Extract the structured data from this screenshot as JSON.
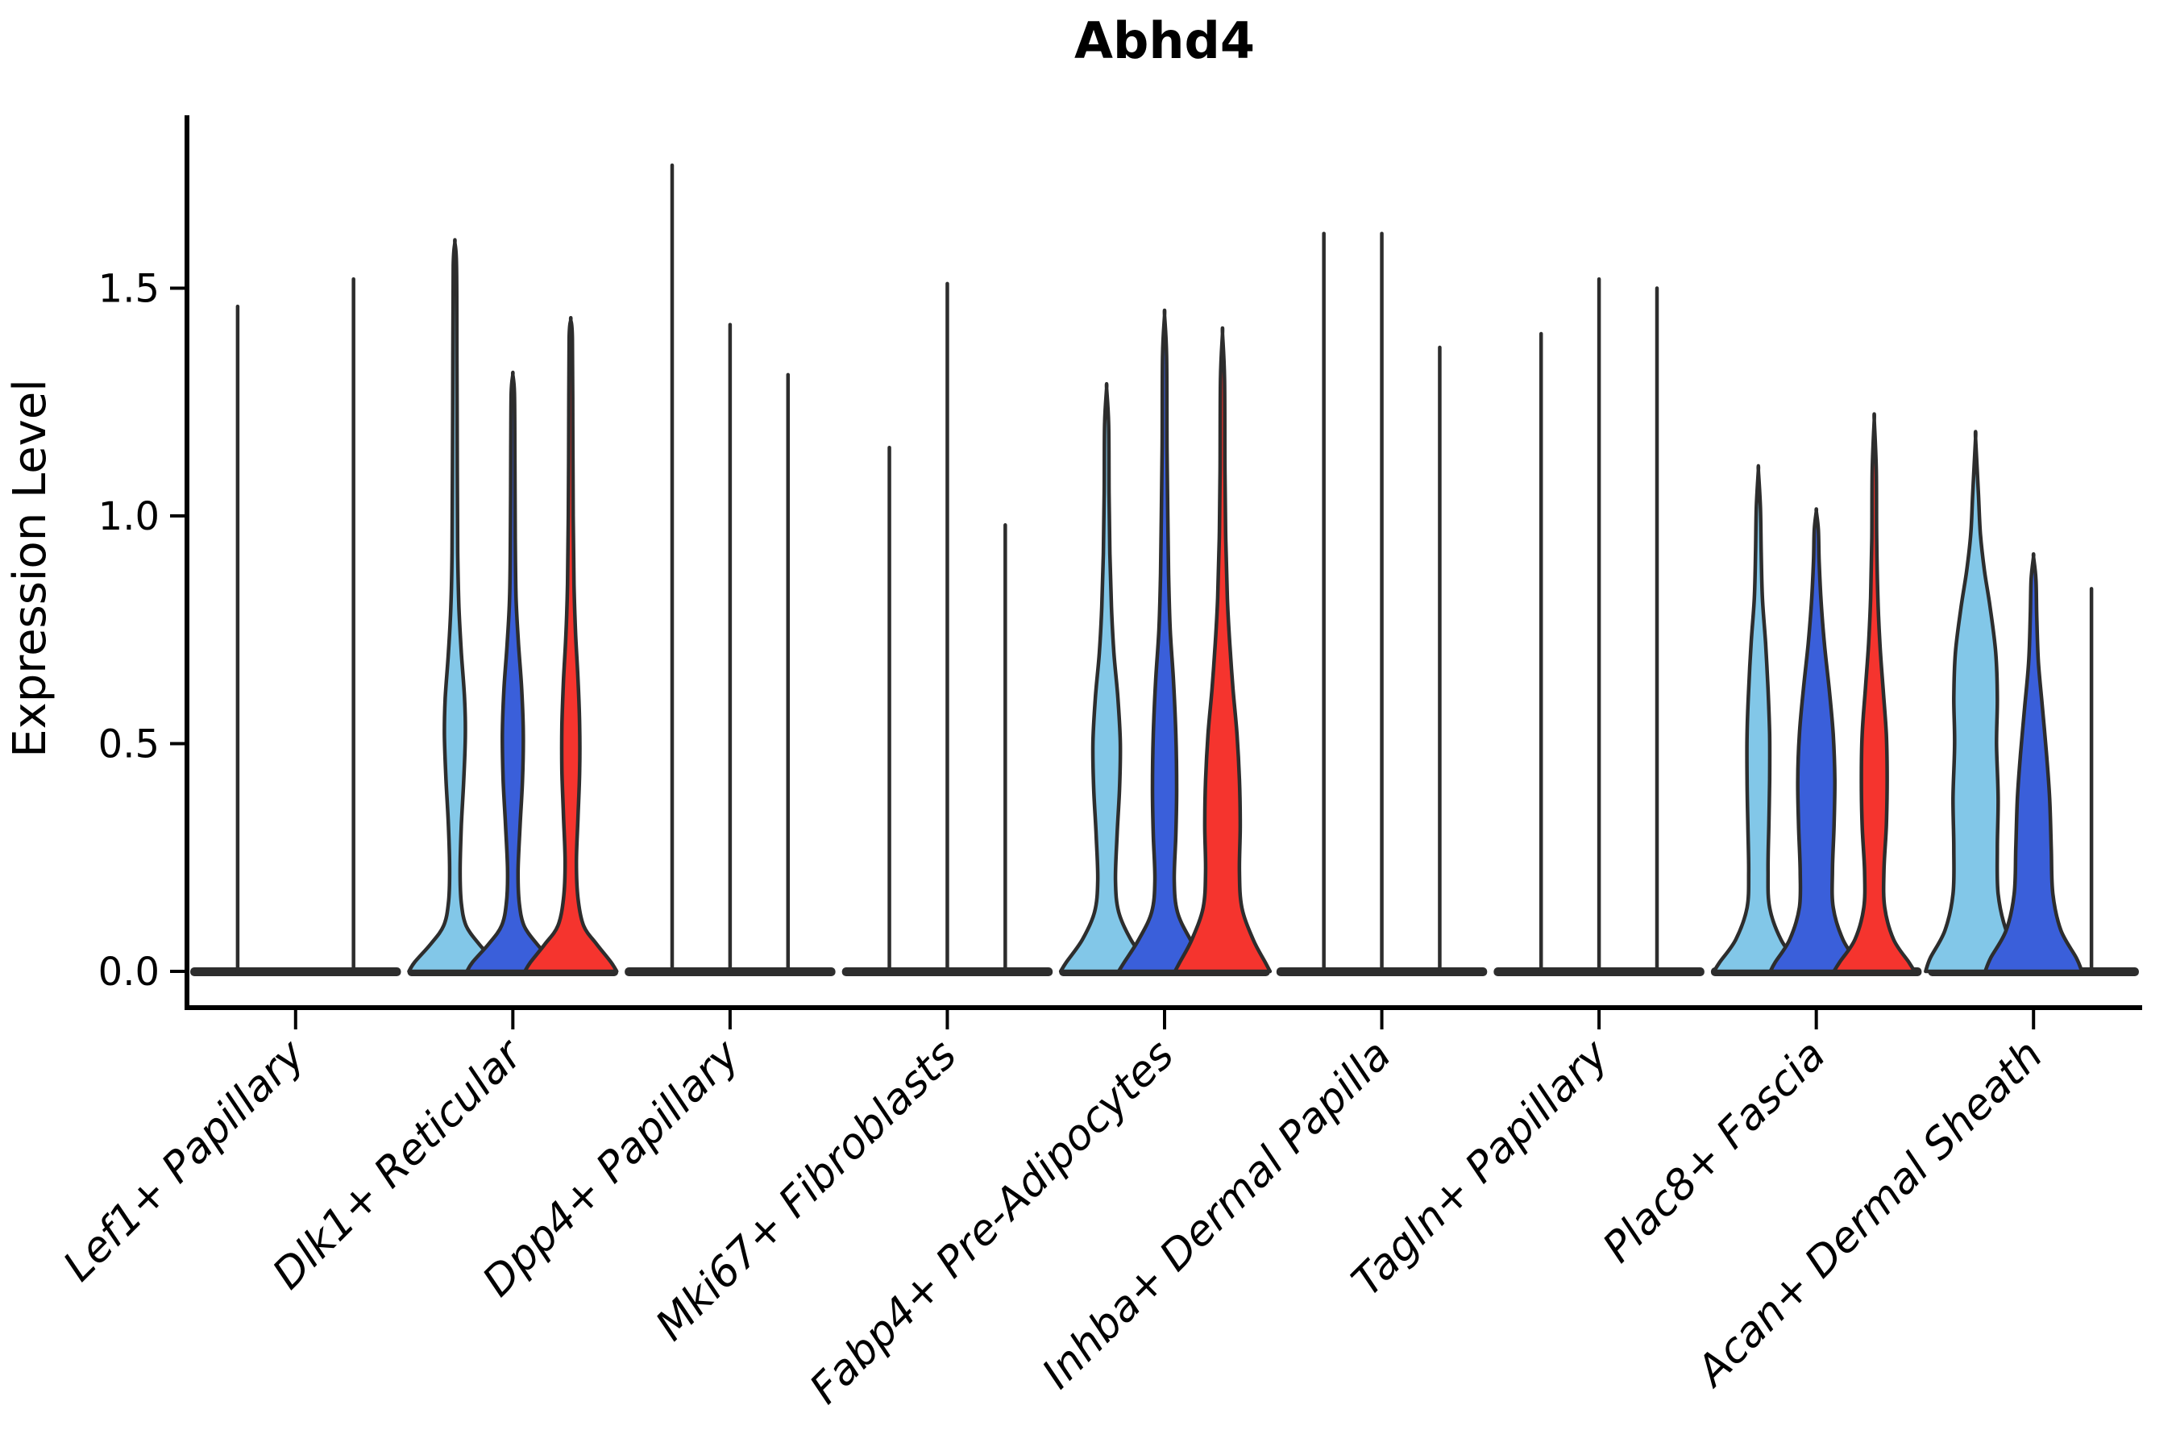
{
  "chart_data": {
    "type": "violin",
    "title": "Abhd4",
    "ylabel": "Expression Level",
    "xlabel": "",
    "ylim": [
      0,
      1.88
    ],
    "yticks": [
      "0.0",
      "0.5",
      "1.0",
      "1.5"
    ],
    "ytick_values": [
      0,
      0.5,
      1.0,
      1.5
    ],
    "grid": false,
    "legend": "none",
    "outline_color": "#2D2D2D",
    "axis_color": "#000000",
    "hue_colors": {
      "light_blue": "#82C7E8",
      "blue": "#3A5FDA",
      "red": "#F5342E"
    },
    "categories": [
      "Lef1+ Papillary",
      "Dlk1+ Reticular",
      "Dpp4+ Papillary",
      "Mki67+ Fibroblasts",
      "Fabp4+ Pre-Adipocytes",
      "Inhba+ Dermal Papilla",
      "Tagln+ Papillary",
      "Plac8+ Fascia",
      "Acan+ Dermal Sheath"
    ],
    "groups": [
      {
        "category": "Lef1+ Papillary",
        "violins": [
          {
            "hue": "light_blue",
            "max": 1.46,
            "shape": "line"
          },
          {
            "hue": "blue",
            "max": 0.0,
            "shape": "flat"
          },
          {
            "hue": "red",
            "max": 1.52,
            "shape": "line"
          }
        ]
      },
      {
        "category": "Dlk1+ Reticular",
        "violins": [
          {
            "hue": "light_blue",
            "max": 1.6,
            "shape": "body",
            "profile": [
              [
                0,
                57
              ],
              [
                0.02,
                50
              ],
              [
                0.06,
                30
              ],
              [
                0.1,
                14
              ],
              [
                0.15,
                8
              ],
              [
                0.22,
                6.5
              ],
              [
                0.32,
                8
              ],
              [
                0.42,
                11
              ],
              [
                0.52,
                13
              ],
              [
                0.6,
                12
              ],
              [
                0.7,
                8
              ],
              [
                0.8,
                5
              ],
              [
                0.92,
                3.5
              ],
              [
                1.1,
                3
              ],
              [
                1.35,
                2.5
              ],
              [
                1.55,
                2
              ],
              [
                1.6,
                0
              ]
            ]
          },
          {
            "hue": "blue",
            "max": 1.31,
            "shape": "body",
            "profile": [
              [
                0,
                57
              ],
              [
                0.02,
                50
              ],
              [
                0.06,
                30
              ],
              [
                0.1,
                14
              ],
              [
                0.15,
                8
              ],
              [
                0.22,
                6.5
              ],
              [
                0.32,
                9
              ],
              [
                0.42,
                12
              ],
              [
                0.52,
                13
              ],
              [
                0.62,
                11
              ],
              [
                0.72,
                7
              ],
              [
                0.82,
                4
              ],
              [
                0.95,
                3
              ],
              [
                1.15,
                2.5
              ],
              [
                1.27,
                2
              ],
              [
                1.31,
                0
              ]
            ]
          },
          {
            "hue": "red",
            "max": 1.43,
            "shape": "body",
            "profile": [
              [
                0,
                57
              ],
              [
                0.02,
                50
              ],
              [
                0.06,
                32
              ],
              [
                0.1,
                16
              ],
              [
                0.16,
                9
              ],
              [
                0.24,
                7
              ],
              [
                0.34,
                9
              ],
              [
                0.44,
                11
              ],
              [
                0.54,
                11
              ],
              [
                0.64,
                9
              ],
              [
                0.74,
                6
              ],
              [
                0.85,
                4
              ],
              [
                1.0,
                3
              ],
              [
                1.2,
                2.5
              ],
              [
                1.39,
                2
              ],
              [
                1.43,
                0
              ]
            ]
          }
        ]
      },
      {
        "category": "Dpp4+ Papillary",
        "violins": [
          {
            "hue": "light_blue",
            "max": 1.77,
            "shape": "line"
          },
          {
            "hue": "blue",
            "max": 1.42,
            "shape": "line"
          },
          {
            "hue": "red",
            "max": 1.31,
            "shape": "line"
          }
        ]
      },
      {
        "category": "Mki67+ Fibroblasts",
        "violins": [
          {
            "hue": "light_blue",
            "max": 1.15,
            "shape": "line"
          },
          {
            "hue": "blue",
            "max": 1.51,
            "shape": "line"
          },
          {
            "hue": "red",
            "max": 0.98,
            "shape": "line"
          }
        ]
      },
      {
        "category": "Fabp4+ Pre-Adipocytes",
        "violins": [
          {
            "hue": "light_blue",
            "max": 1.28,
            "shape": "body",
            "profile": [
              [
                0,
                57
              ],
              [
                0.02,
                50
              ],
              [
                0.07,
                30
              ],
              [
                0.13,
                15
              ],
              [
                0.2,
                11
              ],
              [
                0.3,
                13
              ],
              [
                0.4,
                16
              ],
              [
                0.5,
                17
              ],
              [
                0.6,
                14
              ],
              [
                0.7,
                9
              ],
              [
                0.8,
                6
              ],
              [
                0.92,
                4
              ],
              [
                1.05,
                3
              ],
              [
                1.2,
                2.5
              ],
              [
                1.28,
                0
              ]
            ]
          },
          {
            "hue": "blue",
            "max": 1.44,
            "shape": "body",
            "profile": [
              [
                0,
                57
              ],
              [
                0.02,
                50
              ],
              [
                0.07,
                32
              ],
              [
                0.13,
                16
              ],
              [
                0.2,
                12
              ],
              [
                0.3,
                14
              ],
              [
                0.4,
                15
              ],
              [
                0.52,
                14
              ],
              [
                0.64,
                11
              ],
              [
                0.75,
                7
              ],
              [
                0.87,
                5
              ],
              [
                1.0,
                4
              ],
              [
                1.15,
                3
              ],
              [
                1.35,
                2.5
              ],
              [
                1.44,
                0
              ]
            ]
          },
          {
            "hue": "red",
            "max": 1.4,
            "shape": "body",
            "profile": [
              [
                0,
                59
              ],
              [
                0.02,
                53
              ],
              [
                0.07,
                38
              ],
              [
                0.14,
                24
              ],
              [
                0.22,
                21
              ],
              [
                0.32,
                22
              ],
              [
                0.42,
                21
              ],
              [
                0.52,
                18
              ],
              [
                0.62,
                13
              ],
              [
                0.72,
                9
              ],
              [
                0.82,
                6
              ],
              [
                0.95,
                4
              ],
              [
                1.1,
                3
              ],
              [
                1.3,
                2.5
              ],
              [
                1.4,
                0
              ]
            ]
          }
        ]
      },
      {
        "category": "Inhba+ Dermal Papilla",
        "violins": [
          {
            "hue": "light_blue",
            "max": 1.62,
            "shape": "line"
          },
          {
            "hue": "blue",
            "max": 1.62,
            "shape": "line"
          },
          {
            "hue": "red",
            "max": 1.37,
            "shape": "line"
          }
        ]
      },
      {
        "category": "Tagln+ Papillary",
        "violins": [
          {
            "hue": "light_blue",
            "max": 1.4,
            "shape": "line"
          },
          {
            "hue": "blue",
            "max": 1.52,
            "shape": "line"
          },
          {
            "hue": "red",
            "max": 1.5,
            "shape": "line"
          }
        ]
      },
      {
        "category": "Plac8+ Fascia",
        "violins": [
          {
            "hue": "light_blue",
            "max": 1.1,
            "shape": "body",
            "profile": [
              [
                0,
                55
              ],
              [
                0.02,
                48
              ],
              [
                0.07,
                28
              ],
              [
                0.14,
                14
              ],
              [
                0.22,
                12
              ],
              [
                0.32,
                13
              ],
              [
                0.42,
                14
              ],
              [
                0.52,
                14
              ],
              [
                0.62,
                12
              ],
              [
                0.72,
                9
              ],
              [
                0.82,
                5
              ],
              [
                0.92,
                3.5
              ],
              [
                1.02,
                2.5
              ],
              [
                1.1,
                0
              ]
            ]
          },
          {
            "hue": "blue",
            "max": 1.01,
            "shape": "body",
            "profile": [
              [
                0,
                57
              ],
              [
                0.02,
                51
              ],
              [
                0.07,
                33
              ],
              [
                0.14,
                21
              ],
              [
                0.22,
                20
              ],
              [
                0.32,
                22
              ],
              [
                0.42,
                23
              ],
              [
                0.52,
                21
              ],
              [
                0.62,
                16
              ],
              [
                0.72,
                10
              ],
              [
                0.81,
                6
              ],
              [
                0.9,
                3.5
              ],
              [
                0.97,
                2.5
              ],
              [
                1.01,
                0
              ]
            ]
          },
          {
            "hue": "red",
            "max": 1.21,
            "shape": "body",
            "profile": [
              [
                0,
                50
              ],
              [
                0.02,
                43
              ],
              [
                0.07,
                24
              ],
              [
                0.14,
                13
              ],
              [
                0.22,
                12
              ],
              [
                0.32,
                15
              ],
              [
                0.42,
                16
              ],
              [
                0.52,
                15
              ],
              [
                0.62,
                11
              ],
              [
                0.72,
                7
              ],
              [
                0.82,
                4.5
              ],
              [
                0.95,
                3
              ],
              [
                1.1,
                2.5
              ],
              [
                1.21,
                0
              ]
            ]
          }
        ]
      },
      {
        "category": "Acan+ Dermal Sheath",
        "violins": [
          {
            "hue": "light_blue",
            "max": 1.17,
            "shape": "body",
            "profile": [
              [
                0,
                62
              ],
              [
                0.03,
                56
              ],
              [
                0.09,
                38
              ],
              [
                0.17,
                28
              ],
              [
                0.27,
                27
              ],
              [
                0.38,
                28
              ],
              [
                0.5,
                26
              ],
              [
                0.6,
                27
              ],
              [
                0.7,
                25
              ],
              [
                0.8,
                18
              ],
              [
                0.88,
                11
              ],
              [
                0.96,
                6
              ],
              [
                1.05,
                3.5
              ],
              [
                1.17,
                0
              ]
            ]
          },
          {
            "hue": "blue",
            "max": 0.91,
            "shape": "body",
            "profile": [
              [
                0,
                60
              ],
              [
                0.03,
                53
              ],
              [
                0.09,
                34
              ],
              [
                0.17,
                24
              ],
              [
                0.27,
                22
              ],
              [
                0.38,
                20
              ],
              [
                0.48,
                16
              ],
              [
                0.58,
                11
              ],
              [
                0.68,
                6
              ],
              [
                0.78,
                4
              ],
              [
                0.86,
                3
              ],
              [
                0.91,
                0
              ]
            ]
          },
          {
            "hue": "red",
            "max": 0.84,
            "shape": "line"
          }
        ]
      }
    ],
    "layout_hint": "grouped violin plot, 3 hues per category, no legend, left+bottom spines only, x labels rotated 45deg italic"
  }
}
